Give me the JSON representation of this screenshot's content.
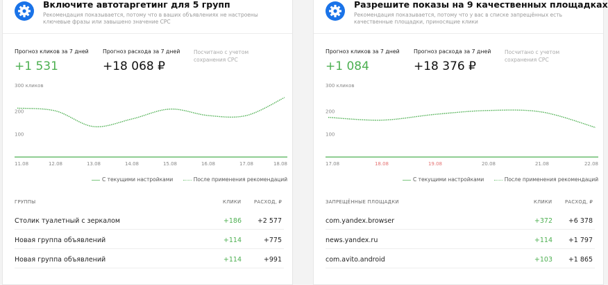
{
  "cards": [
    {
      "title": "Включите автотаргетинг для 5 групп",
      "description": "Рекомендация показывается, потому что в ваших объявлениях не настроены ключевые фразы или завышено значение CPC",
      "stats": {
        "clicks_label": "Прогноз кликов за 7 дней",
        "clicks_value": "+1 531",
        "cost_label": "Прогноз расхода за 7 дней",
        "cost_value": "+18 068 ₽",
        "note": "Посчитано с учетом сохранения CPC"
      },
      "table": {
        "headers": [
          "Группы",
          "Клики",
          "Расход, ₽"
        ],
        "rows": [
          [
            "Столик туалетный с зеркалом",
            "+186",
            "+2 577"
          ],
          [
            "Новая группа объявлений",
            "+114",
            "+775"
          ],
          [
            "Новая группа объявлений",
            "+114",
            "+991"
          ]
        ]
      }
    },
    {
      "title": "Разрешите показы на 9 качественных площадках",
      "description": "Рекомендация показывается, потому что у вас в списке запрещённых есть качественные площадки, приносящие клики",
      "stats": {
        "clicks_label": "Прогноз кликов за 7 дней",
        "clicks_value": "+1 084",
        "cost_label": "Прогноз расхода за 7 дней",
        "cost_value": "+18 376 ₽",
        "note": "Посчитано с учетом сохранения CPC"
      },
      "table": {
        "headers": [
          "Запрещённые площадки",
          "Клики",
          "Расход, ₽"
        ],
        "rows": [
          [
            "com.yandex.browser",
            "+372",
            "+6 378"
          ],
          [
            "news.yandex.ru",
            "+114",
            "+1 797"
          ],
          [
            "com.avito.android",
            "+103",
            "+1 865"
          ]
        ]
      }
    }
  ],
  "legend": {
    "current": "С текущими настройками",
    "after": "После применения рекомендаций"
  },
  "colors": {
    "green": "#4caf50",
    "accent": "#1a73e8",
    "weekend": "#e57373"
  },
  "chart_data": [
    {
      "type": "line",
      "y_axis_label": "300 кликов",
      "yticks": [
        100,
        200
      ],
      "ylim": [
        0,
        300
      ],
      "x": [
        "11.08",
        "12.08",
        "13.08",
        "14.08",
        "15.08",
        "16.08",
        "17.08",
        "18.08"
      ],
      "weekend_ticks": [],
      "series": [
        {
          "name": "С текущими настройками",
          "style": "solid",
          "values": [
            0,
            0,
            0,
            0,
            0,
            0,
            0,
            0
          ]
        },
        {
          "name": "После применения рекомендаций",
          "style": "dotted",
          "values": [
            212,
            200,
            132,
            165,
            208,
            180,
            180,
            258
          ]
        }
      ]
    },
    {
      "type": "line",
      "y_axis_label": "300 кликов",
      "yticks": [
        100,
        200
      ],
      "ylim": [
        0,
        300
      ],
      "x": [
        "17.08",
        "18.08",
        "19.08",
        "20.08",
        "21.08",
        "22.08"
      ],
      "weekend_ticks": [
        "18.08",
        "19.08"
      ],
      "series": [
        {
          "name": "С текущими настройками",
          "style": "solid",
          "values": [
            0,
            0,
            0,
            0,
            0,
            0
          ]
        },
        {
          "name": "После применения рекомендаций",
          "style": "dotted",
          "values": [
            172,
            160,
            185,
            202,
            195,
            128
          ]
        }
      ]
    }
  ]
}
